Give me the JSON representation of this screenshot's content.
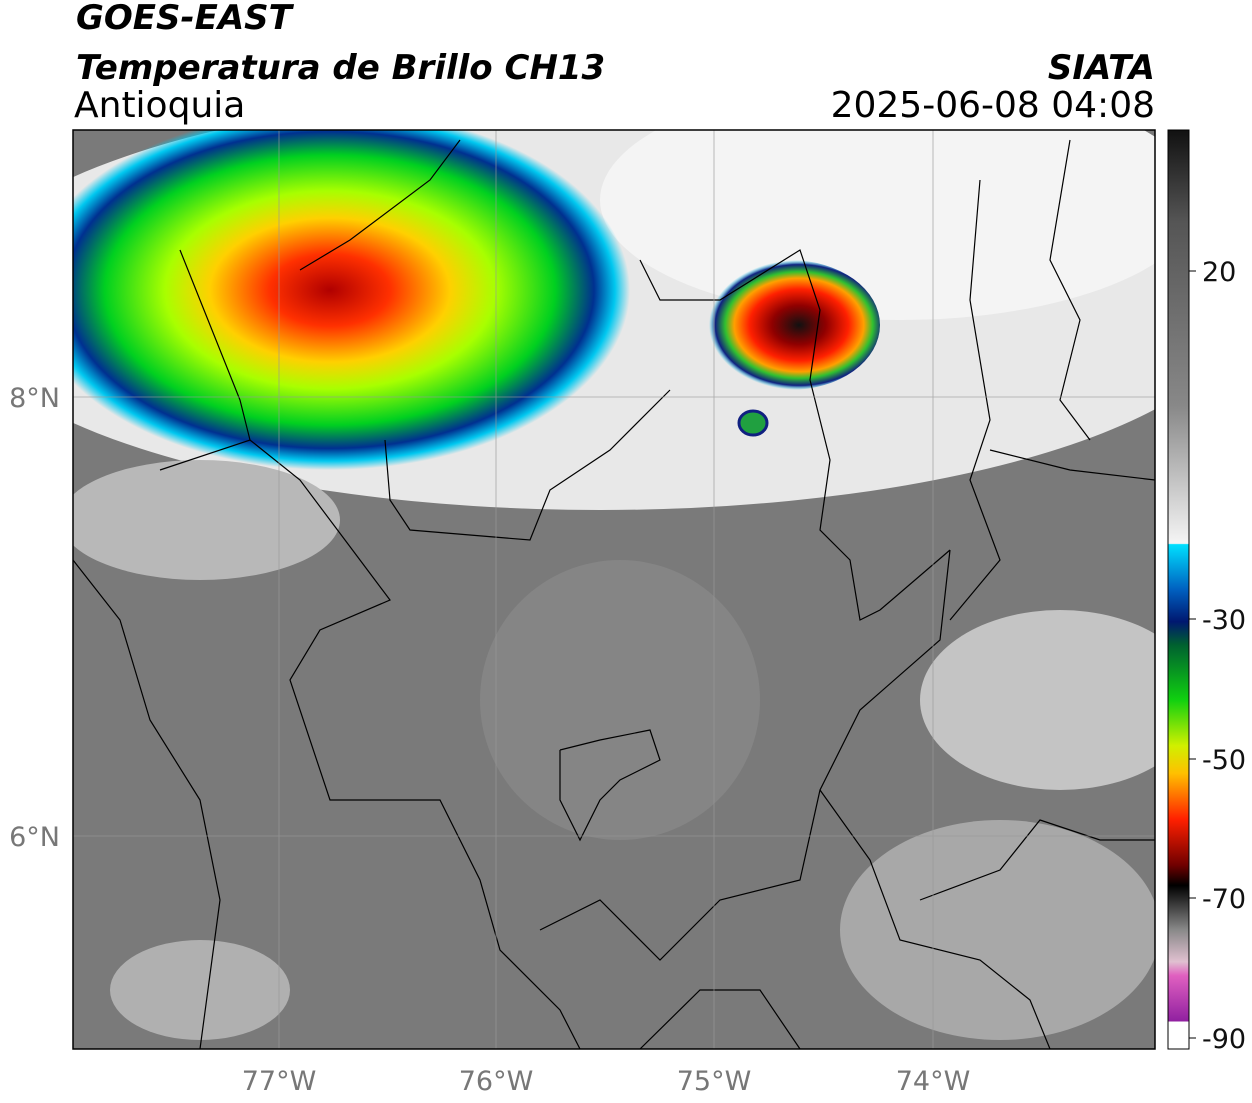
{
  "header": {
    "title": "GOES-EAST",
    "subtitle": "Temperatura de Brillo CH13",
    "region": "Antioquia",
    "source": "SIATA",
    "datetime": "2025-06-08 04:08"
  },
  "map": {
    "lon_labels": [
      "77°W",
      "76°W",
      "75°W",
      "74°W"
    ],
    "lat_labels": [
      "8°N",
      "6°N"
    ]
  },
  "colorbar": {
    "labels": [
      "20",
      "-30",
      "-50",
      "-70",
      "-90"
    ]
  }
}
